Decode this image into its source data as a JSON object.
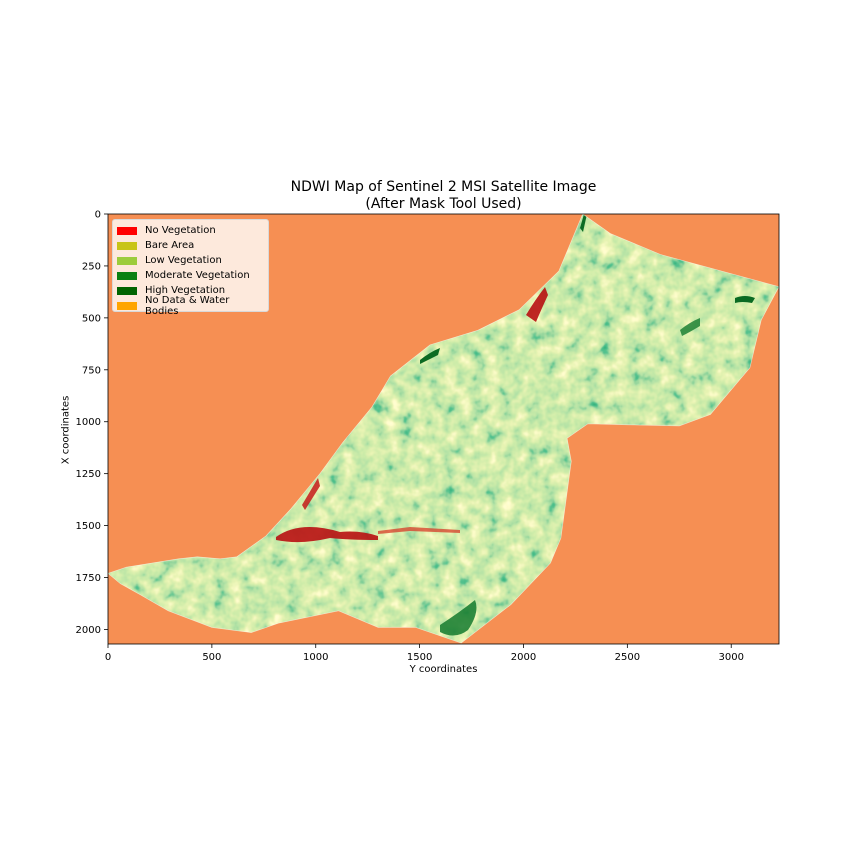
{
  "chart_data": {
    "type": "heatmap",
    "title": "NDWI Map of Sentinel 2 MSI Satellite Image",
    "subtitle": "(After Mask Tool Used)",
    "xlabel": "Y coordinates",
    "ylabel": "X coordinates",
    "xlim": [
      0,
      3230
    ],
    "ylim": [
      2070,
      0
    ],
    "xticks": [
      0,
      500,
      1000,
      1500,
      2000,
      2500,
      3000
    ],
    "yticks": [
      0,
      250,
      500,
      750,
      1000,
      1250,
      1500,
      1750,
      2000
    ],
    "grid": false,
    "legend_position": "upper-left",
    "legend": [
      {
        "label": "No Vegetation",
        "color": "#ff0000"
      },
      {
        "label": "Bare Area",
        "color": "#c8c417"
      },
      {
        "label": "Low Vegetation",
        "color": "#9ccc3c"
      },
      {
        "label": "Moderate Vegetation",
        "color": "#0a8012"
      },
      {
        "label": "High Vegetation",
        "color": "#006400"
      },
      {
        "label": "No Data & Water Bodies",
        "color": "#ffa500"
      }
    ],
    "background_color": "#f68f53",
    "region_outline": [
      [
        2285,
        0
      ],
      [
        2420,
        95
      ],
      [
        2660,
        195
      ],
      [
        3230,
        350
      ],
      [
        3145,
        510
      ],
      [
        3090,
        740
      ],
      [
        2900,
        965
      ],
      [
        2750,
        1020
      ],
      [
        2500,
        1015
      ],
      [
        2310,
        1010
      ],
      [
        2210,
        1080
      ],
      [
        2230,
        1190
      ],
      [
        2180,
        1560
      ],
      [
        2130,
        1680
      ],
      [
        1940,
        1880
      ],
      [
        1700,
        2065
      ],
      [
        1480,
        1990
      ],
      [
        1300,
        1990
      ],
      [
        1110,
        1910
      ],
      [
        820,
        1970
      ],
      [
        690,
        2015
      ],
      [
        500,
        1990
      ],
      [
        290,
        1910
      ],
      [
        150,
        1830
      ],
      [
        60,
        1780
      ],
      [
        0,
        1730
      ],
      [
        90,
        1700
      ],
      [
        340,
        1660
      ],
      [
        430,
        1650
      ],
      [
        540,
        1660
      ],
      [
        620,
        1650
      ],
      [
        760,
        1550
      ],
      [
        880,
        1420
      ],
      [
        1020,
        1250
      ],
      [
        1130,
        1100
      ],
      [
        1270,
        930
      ],
      [
        1360,
        780
      ],
      [
        1550,
        630
      ],
      [
        1780,
        560
      ],
      [
        1980,
        460
      ],
      [
        2170,
        275
      ]
    ]
  }
}
